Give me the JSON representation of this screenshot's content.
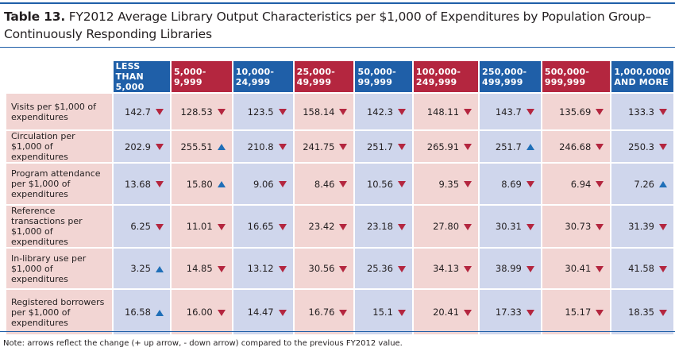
{
  "title": {
    "prefix": "Table 13.",
    "text": " FY2012 Average Library Output Characteristics per $1,000 of Expenditures by Population Group–Continuously Responding Libraries"
  },
  "columns": [
    {
      "line1": "LESS THAN",
      "line2": "5,000",
      "color": "blue"
    },
    {
      "line1": "5,000-",
      "line2": "9,999",
      "color": "red"
    },
    {
      "line1": "10,000-",
      "line2": "24,999",
      "color": "blue"
    },
    {
      "line1": "25,000-",
      "line2": "49,999",
      "color": "red"
    },
    {
      "line1": "50,000-",
      "line2": "99,999",
      "color": "blue"
    },
    {
      "line1": "100,000-",
      "line2": "249,999",
      "color": "red"
    },
    {
      "line1": "250,000-",
      "line2": "499,999",
      "color": "blue"
    },
    {
      "line1": "500,000-",
      "line2": "999,999",
      "color": "red"
    },
    {
      "line1": "1,000,0000",
      "line2": "AND MORE",
      "color": "blue"
    }
  ],
  "rows": [
    {
      "label": "Visits per $1,000 of expenditures",
      "cells": [
        {
          "v": "142.7",
          "dir": "down"
        },
        {
          "v": "128.53",
          "dir": "down"
        },
        {
          "v": "123.5",
          "dir": "down"
        },
        {
          "v": "158.14",
          "dir": "down"
        },
        {
          "v": "142.3",
          "dir": "down"
        },
        {
          "v": "148.11",
          "dir": "down"
        },
        {
          "v": "143.7",
          "dir": "down"
        },
        {
          "v": "135.69",
          "dir": "down"
        },
        {
          "v": "133.3",
          "dir": "down"
        }
      ]
    },
    {
      "label": "Circulation per $1,000 of expenditures",
      "cells": [
        {
          "v": "202.9",
          "dir": "down"
        },
        {
          "v": "255.51",
          "dir": "up"
        },
        {
          "v": "210.8",
          "dir": "down"
        },
        {
          "v": "241.75",
          "dir": "down"
        },
        {
          "v": "251.7",
          "dir": "down"
        },
        {
          "v": "265.91",
          "dir": "down"
        },
        {
          "v": "251.7",
          "dir": "up"
        },
        {
          "v": "246.68",
          "dir": "down"
        },
        {
          "v": "250.3",
          "dir": "down"
        }
      ]
    },
    {
      "label": "Program attendance per $1,000 of expenditures",
      "cells": [
        {
          "v": "13.68",
          "dir": "down"
        },
        {
          "v": "15.80",
          "dir": "up"
        },
        {
          "v": "9.06",
          "dir": "down"
        },
        {
          "v": "8.46",
          "dir": "down"
        },
        {
          "v": "10.56",
          "dir": "down"
        },
        {
          "v": "9.35",
          "dir": "down"
        },
        {
          "v": "8.69",
          "dir": "down"
        },
        {
          "v": "6.94",
          "dir": "down"
        },
        {
          "v": "7.26",
          "dir": "up"
        }
      ]
    },
    {
      "label": "Reference transactions per $1,000 of expenditures",
      "cells": [
        {
          "v": "6.25",
          "dir": "down"
        },
        {
          "v": "11.01",
          "dir": "down"
        },
        {
          "v": "16.65",
          "dir": "down"
        },
        {
          "v": "23.42",
          "dir": "down"
        },
        {
          "v": "23.18",
          "dir": "down"
        },
        {
          "v": "27.80",
          "dir": "down"
        },
        {
          "v": "30.31",
          "dir": "down"
        },
        {
          "v": "30.73",
          "dir": "down"
        },
        {
          "v": "31.39",
          "dir": "down"
        }
      ]
    },
    {
      "label": "In-library use per $1,000 of expenditures",
      "cells": [
        {
          "v": "3.25",
          "dir": "up"
        },
        {
          "v": "14.85",
          "dir": "down"
        },
        {
          "v": "13.12",
          "dir": "down"
        },
        {
          "v": "30.56",
          "dir": "down"
        },
        {
          "v": "25.36",
          "dir": "down"
        },
        {
          "v": "34.13",
          "dir": "down"
        },
        {
          "v": "38.99",
          "dir": "down"
        },
        {
          "v": "30.41",
          "dir": "down"
        },
        {
          "v": "41.58",
          "dir": "down"
        }
      ]
    },
    {
      "label": "Registered borrowers per $1,000 of expenditures",
      "cells": [
        {
          "v": "16.58",
          "dir": "up"
        },
        {
          "v": "16.00",
          "dir": "down"
        },
        {
          "v": "14.47",
          "dir": "down"
        },
        {
          "v": "16.76",
          "dir": "down"
        },
        {
          "v": "15.1",
          "dir": "down"
        },
        {
          "v": "20.41",
          "dir": "down"
        },
        {
          "v": "17.33",
          "dir": "down"
        },
        {
          "v": "15.17",
          "dir": "down"
        },
        {
          "v": "18.35",
          "dir": "down"
        }
      ]
    }
  ],
  "note": "Note: arrows reflect the change (+ up arrow, - down arrow) compared to the previous FY2012 value.",
  "colors": {
    "blue": "#1f5fa8",
    "red": "#b4263f",
    "light_blue": "#cfd6ec",
    "light_red": "#f2d5d3"
  }
}
